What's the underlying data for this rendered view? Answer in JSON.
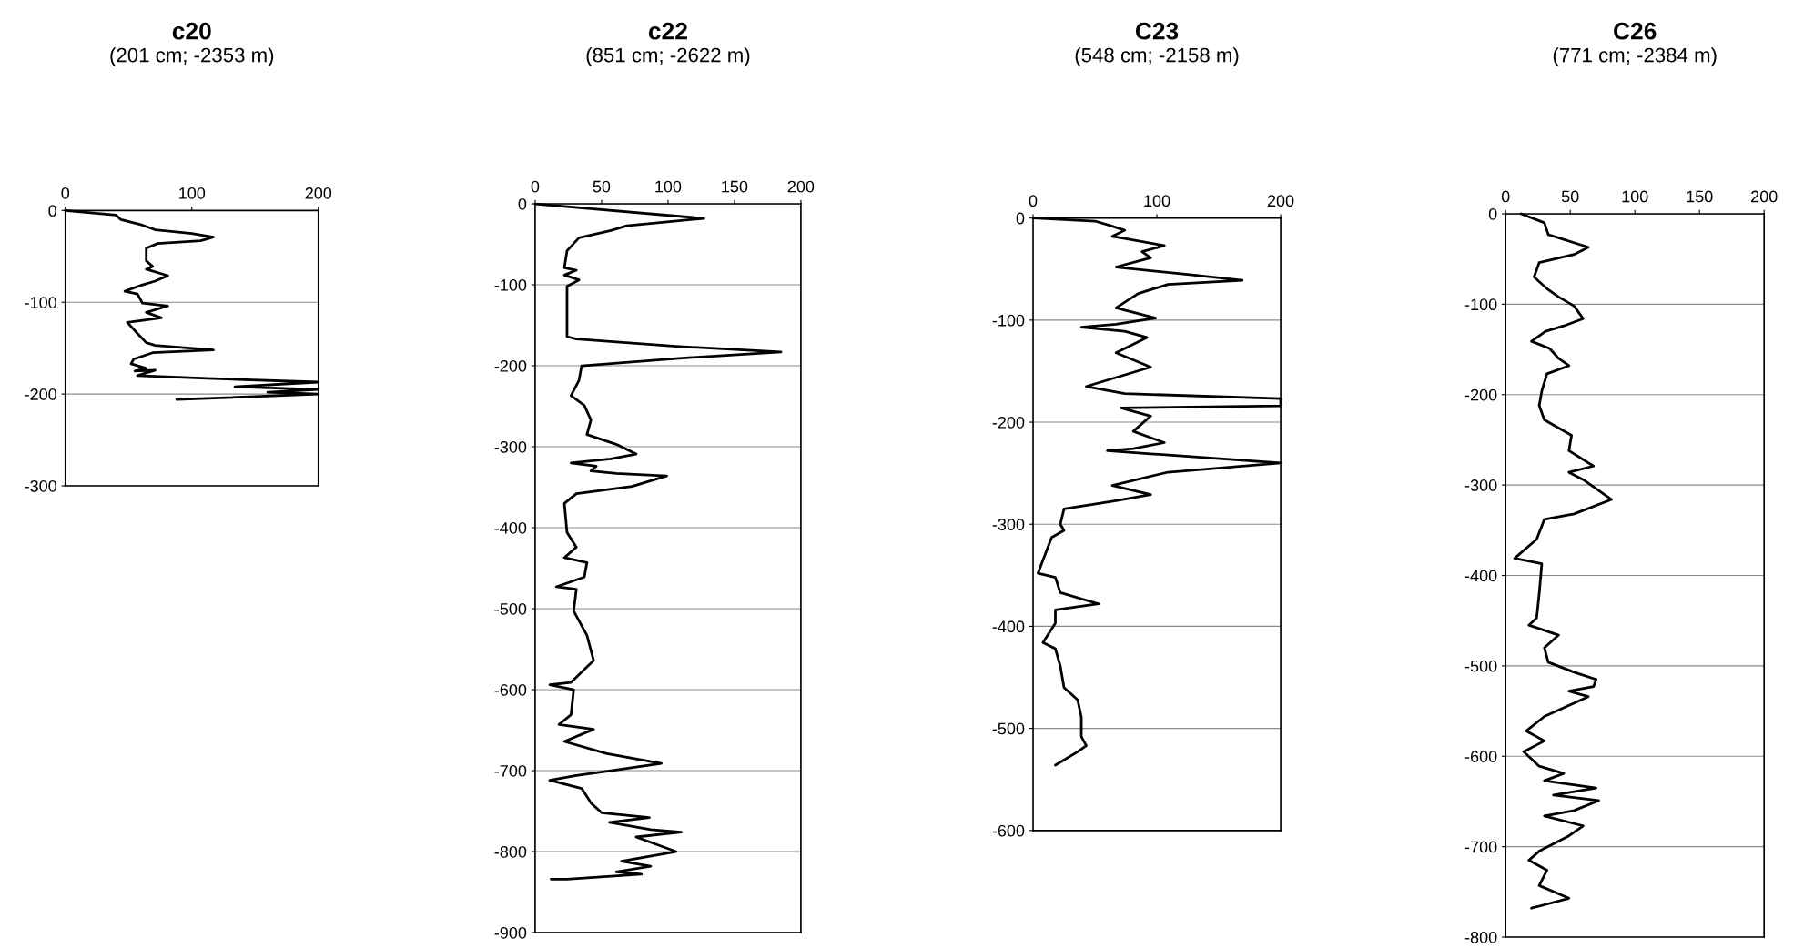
{
  "chart_data": [
    {
      "type": "line",
      "title": "c20",
      "subtitle": "(201 cm; -2353 m)",
      "xlim": [
        0,
        200
      ],
      "xticks": [
        0,
        100,
        200
      ],
      "ylim": [
        -300,
        0
      ],
      "yticks": [
        -300,
        -200,
        -100,
        0
      ],
      "grid": "y",
      "marker": "none",
      "line_style": "solid",
      "series": [
        {
          "color": "#000000",
          "x": [
            0,
            40,
            44,
            61,
            71,
            100,
            117,
            107,
            73,
            64,
            64,
            69,
            64,
            81,
            71,
            61,
            47,
            57,
            61,
            81,
            64,
            76,
            49,
            57,
            64,
            71,
            117,
            69,
            54,
            52,
            64,
            55,
            71,
            57,
            112,
            200,
            134,
            200,
            160,
            200,
            88
          ],
          "values": [
            0,
            -5,
            -10,
            -16,
            -21,
            -25,
            -29,
            -33,
            -36,
            -41,
            -55,
            -61,
            -64,
            -71,
            -77,
            -81,
            -88,
            -91,
            -101,
            -104,
            -111,
            -117,
            -122,
            -134,
            -144,
            -147,
            -152,
            -155,
            -162,
            -167,
            -172,
            -175,
            -174,
            -180,
            -183,
            -187,
            -192,
            -195,
            -198,
            -200,
            -206
          ]
        }
      ]
    },
    {
      "type": "line",
      "title": "c22",
      "subtitle": "(851 cm; -2622 m)",
      "xlim": [
        0,
        200
      ],
      "xticks": [
        0,
        50,
        100,
        150,
        200
      ],
      "ylim": [
        -900,
        0
      ],
      "yticks": [
        -900,
        -800,
        -700,
        -600,
        -500,
        -400,
        -300,
        -200,
        -100,
        0
      ],
      "grid": "y",
      "marker": "none",
      "line_style": "solid",
      "series": [
        {
          "color": "#000000",
          "x": [
            0,
            127,
            69,
            57,
            33,
            24,
            22,
            31,
            22,
            33,
            24,
            24,
            31,
            106,
            185,
            106,
            35,
            33,
            27,
            37,
            42,
            39,
            61,
            76,
            57,
            27,
            46,
            42,
            61,
            99,
            73,
            31,
            22,
            24,
            31,
            22,
            39,
            37,
            16,
            31,
            29,
            39,
            44,
            27,
            11,
            29,
            27,
            18,
            44,
            22,
            54,
            95,
            57,
            31,
            11,
            35,
            42,
            50,
            86,
            56,
            87,
            110,
            76,
            106,
            65,
            87,
            61,
            80,
            24,
            12
          ],
          "values": [
            0,
            -18,
            -27,
            -33,
            -42,
            -58,
            -79,
            -82,
            -88,
            -94,
            -102,
            -164,
            -167,
            -176,
            -183,
            -191,
            -200,
            -218,
            -237,
            -249,
            -267,
            -285,
            -297,
            -309,
            -315,
            -320,
            -324,
            -330,
            -333,
            -336,
            -349,
            -358,
            -370,
            -406,
            -424,
            -437,
            -443,
            -461,
            -473,
            -476,
            -503,
            -533,
            -564,
            -591,
            -594,
            -600,
            -631,
            -643,
            -649,
            -664,
            -679,
            -691,
            -700,
            -706,
            -712,
            -722,
            -740,
            -752,
            -758,
            -764,
            -773,
            -776,
            -782,
            -800,
            -812,
            -818,
            -825,
            -828,
            -834,
            -834
          ]
        }
      ]
    },
    {
      "type": "line",
      "title": "C23",
      "subtitle": "(548 cm; -2158 m)",
      "xlim": [
        0,
        200
      ],
      "xticks": [
        0,
        100,
        200
      ],
      "ylim": [
        -600,
        0
      ],
      "yticks": [
        -600,
        -500,
        -400,
        -300,
        -200,
        -100,
        0
      ],
      "grid": "y",
      "marker": "none",
      "line_style": "solid",
      "series": [
        {
          "color": "#000000",
          "x": [
            0,
            50,
            64,
            74,
            64,
            74,
            106,
            88,
            95,
            67,
            130,
            169,
            109,
            85,
            67,
            99,
            67,
            39,
            74,
            92,
            67,
            95,
            43,
            74,
            200,
            200,
            71,
            95,
            81,
            106,
            81,
            60,
            95,
            200,
            109,
            64,
            95,
            67,
            25,
            22,
            25,
            15,
            4,
            18,
            22,
            53,
            18,
            18,
            8,
            18,
            22,
            25,
            36,
            39,
            39,
            43,
            36,
            18
          ],
          "values": [
            0,
            -3,
            -8,
            -12,
            -18,
            -20,
            -27,
            -33,
            -39,
            -48,
            -56,
            -61,
            -65,
            -74,
            -88,
            -98,
            -104,
            -107,
            -111,
            -117,
            -132,
            -146,
            -165,
            -172,
            -177,
            -184,
            -186,
            -194,
            -209,
            -220,
            -226,
            -228,
            -231,
            -240,
            -249,
            -262,
            -271,
            -277,
            -285,
            -300,
            -306,
            -313,
            -348,
            -352,
            -367,
            -378,
            -384,
            -397,
            -416,
            -422,
            -439,
            -460,
            -472,
            -489,
            -508,
            -517,
            -523,
            -536
          ]
        }
      ]
    },
    {
      "type": "line",
      "title": "C26",
      "subtitle": "(771 cm; -2384 m)",
      "xlim": [
        0,
        200
      ],
      "xticks": [
        0,
        50,
        100,
        150,
        200
      ],
      "ylim": [
        -800,
        0
      ],
      "yticks": [
        -800,
        -700,
        -600,
        -500,
        -400,
        -300,
        -200,
        -100,
        0
      ],
      "grid": "y",
      "marker": "none",
      "line_style": "solid",
      "series": [
        {
          "color": "#000000",
          "x": [
            12,
            30,
            33,
            64,
            53,
            26,
            22,
            33,
            41,
            53,
            60,
            45,
            31,
            20,
            34,
            41,
            49,
            32,
            28,
            26,
            30,
            51,
            49,
            68,
            49,
            60,
            82,
            53,
            30,
            24,
            7,
            28,
            26,
            24,
            18,
            41,
            30,
            33,
            53,
            70,
            68,
            49,
            64,
            30,
            16,
            30,
            14,
            26,
            45,
            30,
            70,
            37,
            72,
            53,
            30,
            60,
            49,
            26,
            18,
            32,
            26,
            49,
            28,
            20
          ],
          "values": [
            0,
            -10,
            -23,
            -37,
            -45,
            -54,
            -70,
            -84,
            -92,
            -102,
            -116,
            -124,
            -130,
            -141,
            -149,
            -160,
            -168,
            -177,
            -196,
            -212,
            -228,
            -245,
            -262,
            -279,
            -286,
            -294,
            -316,
            -332,
            -338,
            -360,
            -381,
            -387,
            -420,
            -447,
            -455,
            -466,
            -480,
            -496,
            -507,
            -515,
            -523,
            -528,
            -534,
            -556,
            -572,
            -583,
            -595,
            -611,
            -619,
            -627,
            -635,
            -643,
            -649,
            -660,
            -666,
            -677,
            -688,
            -705,
            -715,
            -726,
            -743,
            -757,
            -765,
            -768
          ]
        }
      ]
    }
  ]
}
